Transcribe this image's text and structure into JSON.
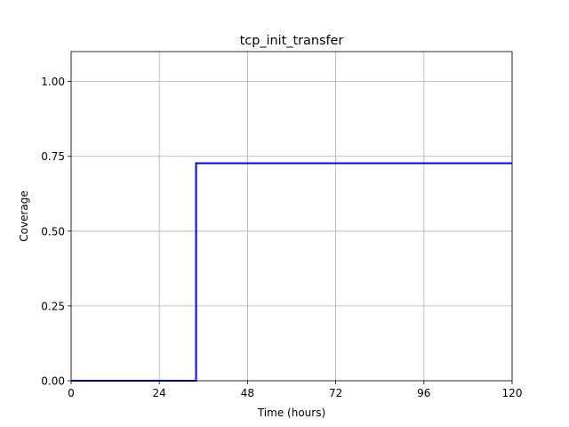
{
  "chart_data": {
    "type": "line",
    "title": "tcp_init_transfer",
    "xlabel": "Time (hours)",
    "ylabel": "Coverage",
    "xlim": [
      0,
      120
    ],
    "ylim": [
      0,
      1.1
    ],
    "xticks": [
      0,
      24,
      48,
      72,
      96,
      120
    ],
    "yticks": [
      0.0,
      0.25,
      0.5,
      0.75,
      1.0
    ],
    "xtick_labels": [
      "0",
      "24",
      "48",
      "72",
      "96",
      "120"
    ],
    "ytick_labels": [
      "0.00",
      "0.25",
      "0.50",
      "0.75",
      "1.00"
    ],
    "grid": true,
    "series": [
      {
        "color": "#0000ff",
        "step": true,
        "x": [
          0,
          34,
          34,
          120
        ],
        "y": [
          0.0,
          0.0,
          0.727,
          0.727
        ]
      }
    ]
  }
}
